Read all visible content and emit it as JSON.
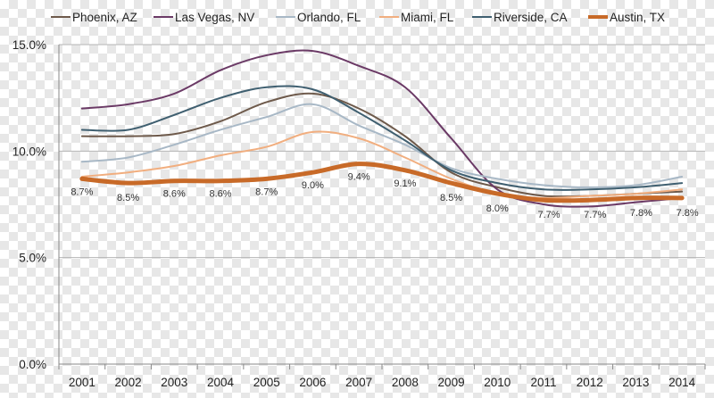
{
  "chart_data": {
    "type": "line",
    "x": [
      "2001",
      "2002",
      "2003",
      "2004",
      "2005",
      "2006",
      "2007",
      "2008",
      "2009",
      "2010",
      "2011",
      "2012",
      "2013",
      "2014"
    ],
    "ylim": [
      0,
      15
    ],
    "y_ticks": [
      "0.0%",
      "5.0%",
      "10.0%",
      "15.0%"
    ],
    "grid": "horizontal",
    "legend_position": "top",
    "series": [
      {
        "name": "Phoenix, AZ",
        "color": "#6e5a4b",
        "width": 2,
        "values": [
          10.7,
          10.7,
          10.8,
          11.4,
          12.3,
          12.7,
          12.0,
          10.7,
          9.0,
          8.3,
          7.9,
          7.9,
          8.0,
          8.1
        ]
      },
      {
        "name": "Las Vegas, NV",
        "color": "#6b3a66",
        "width": 2,
        "values": [
          12.0,
          12.2,
          12.7,
          13.8,
          14.5,
          14.7,
          14.0,
          13.0,
          10.6,
          8.2,
          7.5,
          7.4,
          7.6,
          7.8
        ]
      },
      {
        "name": "Orlando, FL",
        "color": "#a8b8c6",
        "width": 2,
        "values": [
          9.5,
          9.7,
          10.3,
          11.0,
          11.6,
          12.2,
          11.2,
          10.3,
          9.2,
          8.7,
          8.4,
          8.3,
          8.4,
          8.8
        ]
      },
      {
        "name": "Miami, FL",
        "color": "#f1ae7f",
        "width": 2,
        "values": [
          8.8,
          9.0,
          9.3,
          9.8,
          10.2,
          10.9,
          10.6,
          9.7,
          8.7,
          8.0,
          7.8,
          7.9,
          8.0,
          8.2
        ]
      },
      {
        "name": "Riverside, CA",
        "color": "#3f5f70",
        "width": 2,
        "values": [
          11.0,
          11.0,
          11.7,
          12.5,
          13.0,
          12.9,
          11.8,
          10.5,
          9.1,
          8.5,
          8.2,
          8.2,
          8.3,
          8.5
        ]
      },
      {
        "name": "Austin, TX",
        "color": "#c86a28",
        "width": 5,
        "values": [
          8.7,
          8.5,
          8.6,
          8.6,
          8.7,
          9.0,
          9.4,
          9.1,
          8.5,
          8.0,
          7.7,
          7.7,
          7.8,
          7.8
        ]
      }
    ],
    "data_labels": [
      "8.7%",
      "8.5%",
      "8.6%",
      "8.6%",
      "8.7%",
      "9.0%",
      "9.4%",
      "9.1%",
      "8.5%",
      "8.0%",
      "7.7%",
      "7.7%",
      "7.8%",
      "7.8%"
    ]
  }
}
